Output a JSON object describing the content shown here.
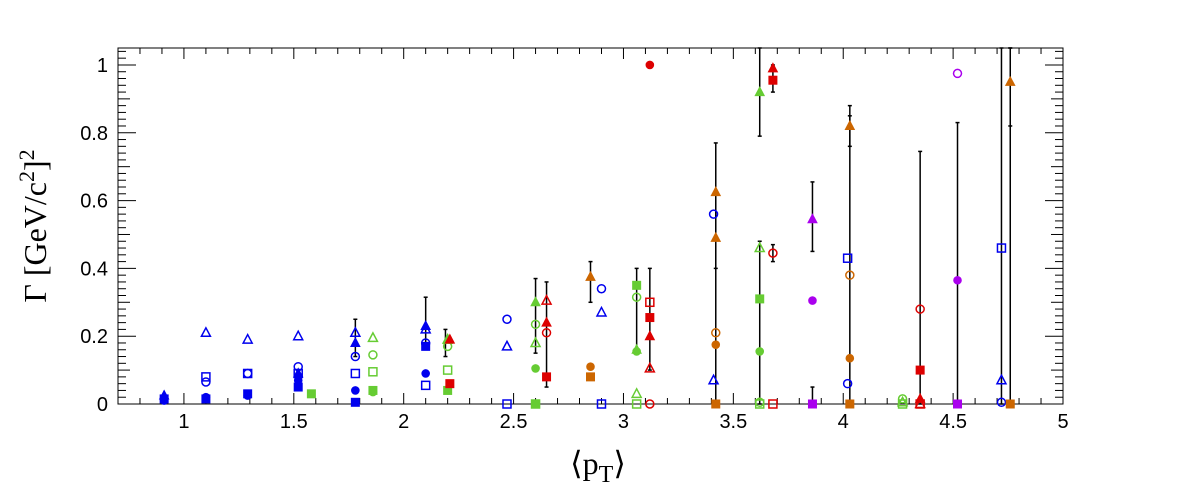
{
  "chart_data": {
    "type": "scatter",
    "title": "",
    "xlabel": "⟨p_T⟩",
    "ylabel": "Γ [GeV/c²]²",
    "xlim": [
      0.7,
      5.0
    ],
    "ylim": [
      0,
      1.05
    ],
    "x_ticks": [
      "1",
      "1.5",
      "2",
      "2.5",
      "3",
      "3.5",
      "4",
      "4.5",
      "5"
    ],
    "y_ticks": [
      "0",
      "0.2",
      "0.4",
      "0.6",
      "0.8",
      "1"
    ],
    "grid": false,
    "legend": "none",
    "colors": {
      "blue": "#0000ee",
      "green": "#66cc33",
      "red": "#dd0000",
      "orange": "#cc6600",
      "magenta": "#aa00ee",
      "black": "#000000"
    },
    "series": [
      {
        "color": "blue",
        "marker": "filled-circle",
        "points": [
          [
            0.91,
            0.01
          ],
          [
            1.1,
            0.02
          ],
          [
            1.29,
            0.025
          ],
          [
            1.52,
            0.07
          ],
          [
            1.78,
            0.04
          ],
          [
            2.1,
            0.09
          ]
        ]
      },
      {
        "color": "blue",
        "marker": "filled-square",
        "points": [
          [
            0.91,
            0.015
          ],
          [
            1.1,
            0.015
          ],
          [
            1.29,
            0.03
          ],
          [
            1.52,
            0.05
          ],
          [
            1.78,
            0.005
          ],
          [
            2.1,
            0.17
          ]
        ]
      },
      {
        "color": "blue",
        "marker": "filled-triangle",
        "points": [
          [
            0.91,
            0.025
          ],
          [
            1.52,
            0.09
          ],
          [
            1.78,
            0.18
          ],
          [
            2.1,
            0.23
          ]
        ]
      },
      {
        "color": "blue",
        "marker": "open-circle",
        "points": [
          [
            1.1,
            0.065
          ],
          [
            1.29,
            0.09
          ],
          [
            1.52,
            0.11
          ],
          [
            1.78,
            0.14
          ],
          [
            2.1,
            0.18
          ],
          [
            2.47,
            0.25
          ],
          [
            2.9,
            0.34
          ],
          [
            3.41,
            0.56
          ],
          [
            4.02,
            0.06
          ],
          [
            4.72,
            0.005
          ]
        ]
      },
      {
        "color": "blue",
        "marker": "open-square",
        "points": [
          [
            1.1,
            0.08
          ],
          [
            1.29,
            0.09
          ],
          [
            1.52,
            0.09
          ],
          [
            1.78,
            0.09
          ],
          [
            2.1,
            0.055
          ],
          [
            2.47,
            0.0
          ],
          [
            2.9,
            0.0
          ],
          [
            4.02,
            0.43
          ],
          [
            4.72,
            0.46
          ]
        ]
      },
      {
        "color": "blue",
        "marker": "open-triangle",
        "points": [
          [
            1.1,
            0.21
          ],
          [
            1.29,
            0.19
          ],
          [
            1.52,
            0.2
          ],
          [
            1.78,
            0.21
          ],
          [
            2.1,
            0.22
          ],
          [
            2.47,
            0.17
          ],
          [
            2.9,
            0.27
          ],
          [
            3.41,
            0.07
          ],
          [
            4.72,
            0.07
          ]
        ]
      },
      {
        "color": "green",
        "marker": "filled-square",
        "points": [
          [
            1.58,
            0.03
          ],
          [
            1.86,
            0.04
          ],
          [
            2.2,
            0.04
          ],
          [
            2.6,
            0.0
          ],
          [
            3.06,
            0.35
          ],
          [
            3.62,
            0.31
          ]
        ]
      },
      {
        "color": "green",
        "marker": "filled-circle",
        "points": [
          [
            1.86,
            0.035
          ],
          [
            2.6,
            0.105
          ],
          [
            3.06,
            0.155
          ],
          [
            3.62,
            0.155
          ]
        ]
      },
      {
        "color": "green",
        "marker": "filled-triangle",
        "points": [
          [
            2.2,
            0.19
          ],
          [
            2.6,
            0.3
          ],
          [
            3.06,
            0.16
          ],
          [
            3.62,
            0.92
          ]
        ]
      },
      {
        "color": "green",
        "marker": "open-circle",
        "points": [
          [
            1.86,
            0.145
          ],
          [
            2.2,
            0.17
          ],
          [
            2.6,
            0.235
          ],
          [
            3.06,
            0.315
          ],
          [
            3.62,
            0.005
          ],
          [
            4.27,
            0.015
          ]
        ]
      },
      {
        "color": "green",
        "marker": "open-square",
        "points": [
          [
            1.86,
            0.095
          ],
          [
            2.2,
            0.1
          ],
          [
            2.6,
            0.0
          ],
          [
            3.06,
            0.0
          ],
          [
            3.62,
            0.0
          ],
          [
            4.27,
            0.0
          ]
        ]
      },
      {
        "color": "green",
        "marker": "open-triangle",
        "points": [
          [
            1.86,
            0.195
          ],
          [
            2.2,
            0.19
          ],
          [
            2.6,
            0.18
          ],
          [
            3.06,
            0.03
          ],
          [
            3.62,
            0.46
          ],
          [
            4.27,
            0.005
          ]
        ]
      },
      {
        "color": "red",
        "marker": "filled-circle",
        "points": [
          [
            3.12,
            1.0
          ]
        ]
      },
      {
        "color": "red",
        "marker": "filled-square",
        "points": [
          [
            2.21,
            0.06
          ],
          [
            2.65,
            0.08
          ],
          [
            3.12,
            0.255
          ],
          [
            3.68,
            0.955
          ],
          [
            4.35,
            0.1
          ]
        ]
      },
      {
        "color": "red",
        "marker": "filled-triangle",
        "points": [
          [
            2.21,
            0.19
          ],
          [
            2.65,
            0.24
          ],
          [
            3.12,
            0.2
          ],
          [
            3.68,
            0.99
          ],
          [
            4.35,
            0.015
          ]
        ]
      },
      {
        "color": "red",
        "marker": "open-circle",
        "points": [
          [
            2.65,
            0.21
          ],
          [
            3.12,
            0.0
          ],
          [
            3.68,
            0.445
          ],
          [
            4.35,
            0.28
          ]
        ]
      },
      {
        "color": "red",
        "marker": "open-square",
        "points": [
          [
            3.12,
            0.3
          ],
          [
            3.68,
            0.0
          ],
          [
            4.35,
            0.0
          ]
        ]
      },
      {
        "color": "red",
        "marker": "open-triangle",
        "points": [
          [
            2.65,
            0.305
          ],
          [
            3.12,
            0.105
          ],
          [
            4.35,
            0.0
          ]
        ]
      },
      {
        "color": "orange",
        "marker": "filled-circle",
        "points": [
          [
            2.85,
            0.11
          ],
          [
            3.42,
            0.175
          ],
          [
            4.03,
            0.135
          ]
        ]
      },
      {
        "color": "orange",
        "marker": "filled-square",
        "points": [
          [
            2.85,
            0.08
          ],
          [
            3.42,
            0.0
          ],
          [
            4.03,
            0.0
          ],
          [
            4.76,
            0.0
          ]
        ]
      },
      {
        "color": "orange",
        "marker": "filled-triangle",
        "points": [
          [
            2.85,
            0.375
          ],
          [
            3.42,
            0.625
          ],
          [
            3.42,
            0.49
          ],
          [
            4.03,
            0.82
          ],
          [
            4.76,
            0.95
          ]
        ]
      },
      {
        "color": "orange",
        "marker": "open-circle",
        "points": [
          [
            3.42,
            0.21
          ],
          [
            4.03,
            0.38
          ]
        ]
      },
      {
        "color": "magenta",
        "marker": "filled-circle",
        "points": [
          [
            3.86,
            0.305
          ],
          [
            4.52,
            0.365
          ]
        ]
      },
      {
        "color": "magenta",
        "marker": "filled-square",
        "points": [
          [
            3.86,
            0.0
          ],
          [
            4.52,
            0.0
          ]
        ]
      },
      {
        "color": "magenta",
        "marker": "filled-triangle",
        "points": [
          [
            3.86,
            0.545
          ]
        ]
      },
      {
        "color": "magenta",
        "marker": "open-circle",
        "points": [
          [
            4.52,
            0.975
          ]
        ]
      }
    ],
    "error_bars": [
      [
        1.78,
        0.14,
        0.25
      ],
      [
        2.1,
        0.16,
        0.315
      ],
      [
        2.19,
        0.14,
        0.22
      ],
      [
        2.6,
        0.15,
        0.37
      ],
      [
        2.65,
        0.05,
        0.36
      ],
      [
        2.85,
        0.3,
        0.42
      ],
      [
        3.06,
        0.15,
        0.4
      ],
      [
        3.12,
        0.1,
        0.4
      ],
      [
        3.42,
        0.4,
        0.77
      ],
      [
        3.42,
        0.0,
        0.62
      ],
      [
        3.62,
        0.79,
        1.05
      ],
      [
        3.62,
        0.0,
        0.48
      ],
      [
        3.68,
        0.92,
        1.0
      ],
      [
        3.68,
        0.42,
        0.47
      ],
      [
        3.86,
        0.45,
        0.655
      ],
      [
        3.86,
        0.0,
        0.05
      ],
      [
        4.03,
        0.76,
        0.88
      ],
      [
        4.03,
        0.0,
        0.85
      ],
      [
        4.35,
        0.0,
        0.745
      ],
      [
        4.52,
        0.0,
        0.83
      ],
      [
        4.72,
        0.0,
        1.05
      ],
      [
        4.76,
        0.0,
        1.05
      ],
      [
        4.76,
        0.82,
        1.05
      ]
    ]
  }
}
